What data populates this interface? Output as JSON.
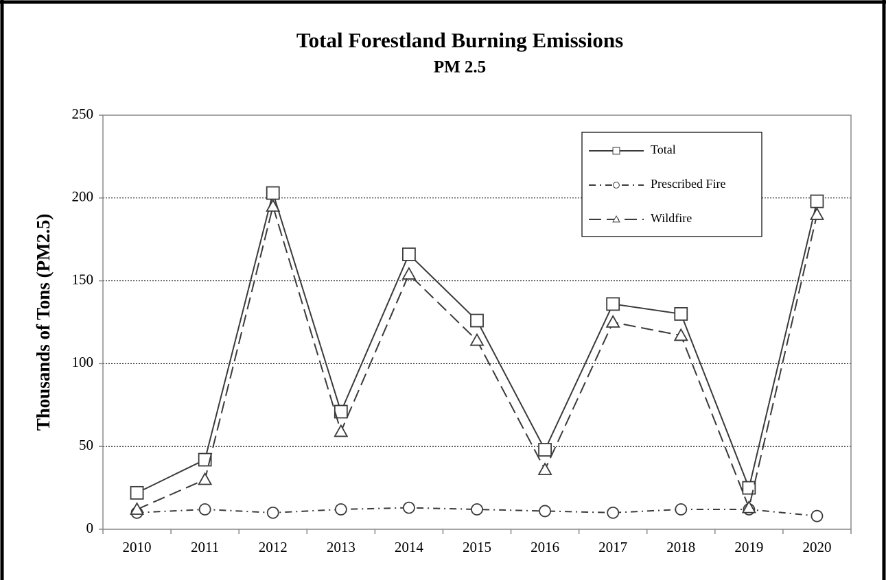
{
  "chart_data": {
    "type": "line",
    "title": "Total Forestland Burning Emissions",
    "subtitle": "PM 2.5",
    "y_label": "Thousands of Tons (PM2.5)",
    "categories": [
      "2010",
      "2011",
      "2012",
      "2013",
      "2014",
      "2015",
      "2016",
      "2017",
      "2018",
      "2019",
      "2020"
    ],
    "series": [
      {
        "name": "Total",
        "color": "#3a3a3a",
        "marker": "square",
        "line_style": "solid",
        "values": [
          22,
          42,
          203,
          71,
          166,
          126,
          48,
          136,
          130,
          25,
          198
        ]
      },
      {
        "name": "Prescribed Fire",
        "color": "#3a3a3a",
        "marker": "circle",
        "line_style": "dashdot",
        "values": [
          10,
          12,
          10,
          12,
          13,
          12,
          11,
          10,
          12,
          12,
          8
        ]
      },
      {
        "name": "Wildfire",
        "color": "#3a3a3a",
        "marker": "triangle",
        "line_style": "dashed",
        "values": [
          12,
          30,
          195,
          59,
          154,
          114,
          36,
          125,
          117,
          13,
          190
        ]
      }
    ],
    "ylim": [
      0,
      250
    ],
    "yticks": [
      0,
      50,
      100,
      150,
      200,
      250
    ],
    "grid": true,
    "legend": "upper right"
  }
}
